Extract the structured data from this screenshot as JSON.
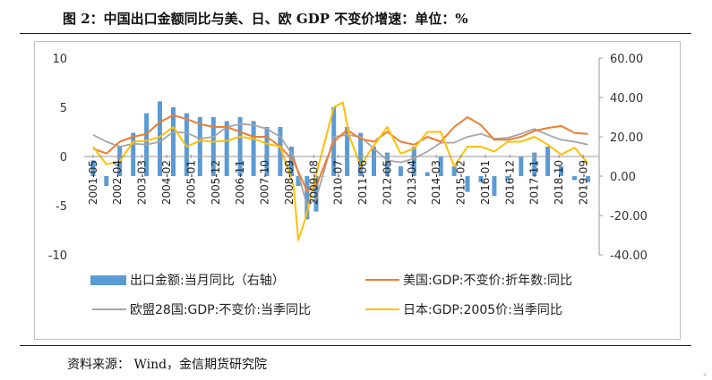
{
  "title": "图 2：中国出口金额同比与美、日、欧 GDP 不变价增速：单位：%",
  "source": "资料来源： Wind，金信期货研究院",
  "colors": {
    "china": "#5b9bd5",
    "us": "#ed7d31",
    "eu": "#a5a5a5",
    "japan": "#ffc000"
  },
  "chart_data": {
    "type": "bar",
    "x_tick_labels": [
      "2001-05",
      "2002-04",
      "2003-03",
      "2004-02",
      "2005-01",
      "2005-12",
      "2006-11",
      "2007-10",
      "2008-09",
      "2009-08",
      "2010-07",
      "2011-06",
      "2012-05",
      "2013-04",
      "2014-03",
      "2015-02",
      "2016-01",
      "2016-12",
      "2017-11",
      "2018-10",
      "2019-09"
    ],
    "left_axis": {
      "ticks": [
        "10",
        "5",
        "0",
        "-5",
        "-10"
      ],
      "ylim": [
        -10,
        10
      ]
    },
    "right_axis": {
      "ticks": [
        "60.00",
        "40.00",
        "20.00",
        "0.00",
        "-20.00",
        "-40.00"
      ],
      "ylim": [
        -40,
        60
      ]
    },
    "legend": [
      {
        "key": "china",
        "label": "出口金额:当月同比（右轴）"
      },
      {
        "key": "us",
        "label": "美国:GDP:不变价:折年数:同比"
      },
      {
        "key": "eu",
        "label": "欧盟28国:GDP:不变价:当季同比"
      },
      {
        "key": "japan",
        "label": "日本:GDP:2005价:当季同比"
      }
    ],
    "series": [
      {
        "key": "china",
        "name": "出口金额:当月同比（右轴）",
        "type": "bar",
        "axis": "right",
        "x": [
          2001.33,
          2001.83,
          2002.33,
          2002.83,
          2003.33,
          2003.83,
          2004.33,
          2004.83,
          2005.33,
          2005.83,
          2006.33,
          2006.83,
          2007.33,
          2007.83,
          2008.33,
          2008.75,
          2009.0,
          2009.33,
          2009.67,
          2009.92,
          2010.33,
          2010.83,
          2011.33,
          2011.83,
          2012.33,
          2012.83,
          2013.33,
          2013.83,
          2014.33,
          2014.83,
          2015.33,
          2015.83,
          2016.33,
          2016.83,
          2017.33,
          2017.83,
          2018.33,
          2018.83,
          2019.33,
          2019.83
        ],
        "values": [
          8,
          -5,
          15,
          22,
          32,
          38,
          35,
          32,
          30,
          30,
          28,
          30,
          28,
          25,
          25,
          15,
          -5,
          -22,
          -18,
          0,
          35,
          25,
          22,
          15,
          12,
          5,
          15,
          2,
          10,
          5,
          -8,
          -3,
          -10,
          -2,
          10,
          12,
          15,
          5,
          -2,
          -3
        ]
      },
      {
        "key": "us",
        "name": "美国:GDP:不变价:折年数:同比",
        "type": "line",
        "axis": "left",
        "x": [
          2001.33,
          2001.83,
          2002.33,
          2002.83,
          2003.33,
          2003.83,
          2004.33,
          2004.83,
          2005.33,
          2005.83,
          2006.33,
          2006.83,
          2007.33,
          2007.83,
          2008.33,
          2008.83,
          2009.33,
          2009.67,
          2010.33,
          2010.83,
          2011.33,
          2011.83,
          2012.33,
          2012.83,
          2013.33,
          2013.83,
          2014.33,
          2014.83,
          2015.33,
          2015.83,
          2016.33,
          2016.83,
          2017.33,
          2017.83,
          2018.33,
          2018.83,
          2019.33,
          2019.83
        ],
        "values": [
          0.8,
          0.3,
          1.5,
          2.0,
          2.3,
          3.5,
          4.2,
          3.8,
          3.3,
          3.0,
          3.0,
          2.5,
          2.0,
          2.0,
          1.0,
          -0.5,
          -3.5,
          -3.0,
          1.5,
          2.7,
          1.8,
          1.5,
          2.5,
          1.5,
          1.2,
          2.0,
          1.5,
          3.0,
          4.0,
          3.2,
          1.7,
          1.7,
          2.0,
          2.6,
          2.9,
          3.1,
          2.4,
          2.3
        ]
      },
      {
        "key": "eu",
        "name": "欧盟28国:GDP:不变价:当季同比",
        "type": "line",
        "axis": "left",
        "x": [
          2001.33,
          2001.83,
          2002.33,
          2002.83,
          2003.33,
          2003.83,
          2004.33,
          2004.83,
          2005.33,
          2005.83,
          2006.33,
          2006.83,
          2007.33,
          2007.83,
          2008.33,
          2008.83,
          2009.33,
          2009.67,
          2010.33,
          2010.83,
          2011.33,
          2011.83,
          2012.33,
          2012.83,
          2013.33,
          2013.83,
          2014.33,
          2014.83,
          2015.33,
          2015.83,
          2016.33,
          2016.83,
          2017.33,
          2017.83,
          2018.33,
          2018.83,
          2019.33,
          2019.83
        ],
        "values": [
          2.2,
          1.5,
          1.0,
          1.3,
          1.2,
          1.5,
          2.5,
          2.4,
          1.8,
          2.0,
          3.0,
          3.3,
          3.2,
          2.8,
          2.0,
          0.0,
          -5.0,
          -4.3,
          2.0,
          2.2,
          2.0,
          0.8,
          -0.4,
          -0.6,
          -0.2,
          0.5,
          1.4,
          1.4,
          2.0,
          2.3,
          1.8,
          1.9,
          2.3,
          2.8,
          2.2,
          1.7,
          1.5,
          1.2
        ]
      },
      {
        "key": "japan",
        "name": "日本:GDP:2005价:当季同比",
        "type": "line",
        "axis": "left",
        "x": [
          2001.33,
          2001.83,
          2002.33,
          2002.83,
          2003.33,
          2003.83,
          2004.33,
          2004.83,
          2005.33,
          2005.83,
          2006.33,
          2006.83,
          2007.33,
          2007.83,
          2008.33,
          2008.83,
          2009.0,
          2009.25,
          2009.75,
          2010.33,
          2010.67,
          2010.92,
          2011.33,
          2011.67,
          2012.33,
          2012.83,
          2013.33,
          2013.83,
          2014.33,
          2014.83,
          2015.33,
          2015.83,
          2016.33,
          2016.83,
          2017.33,
          2017.83,
          2018.33,
          2018.83,
          2019.33,
          2019.83
        ],
        "values": [
          1.0,
          -0.8,
          -0.5,
          1.5,
          1.6,
          2.0,
          3.0,
          1.0,
          1.6,
          1.5,
          1.6,
          2.0,
          1.8,
          1.3,
          1.0,
          -3.0,
          -8.5,
          -6.5,
          -1.0,
          5.0,
          5.5,
          2.0,
          -1.0,
          0.5,
          3.0,
          0.3,
          0.8,
          2.5,
          2.5,
          -1.0,
          1.0,
          1.0,
          0.5,
          1.5,
          1.5,
          2.0,
          1.2,
          0.2,
          0.9,
          -0.7
        ]
      }
    ]
  }
}
